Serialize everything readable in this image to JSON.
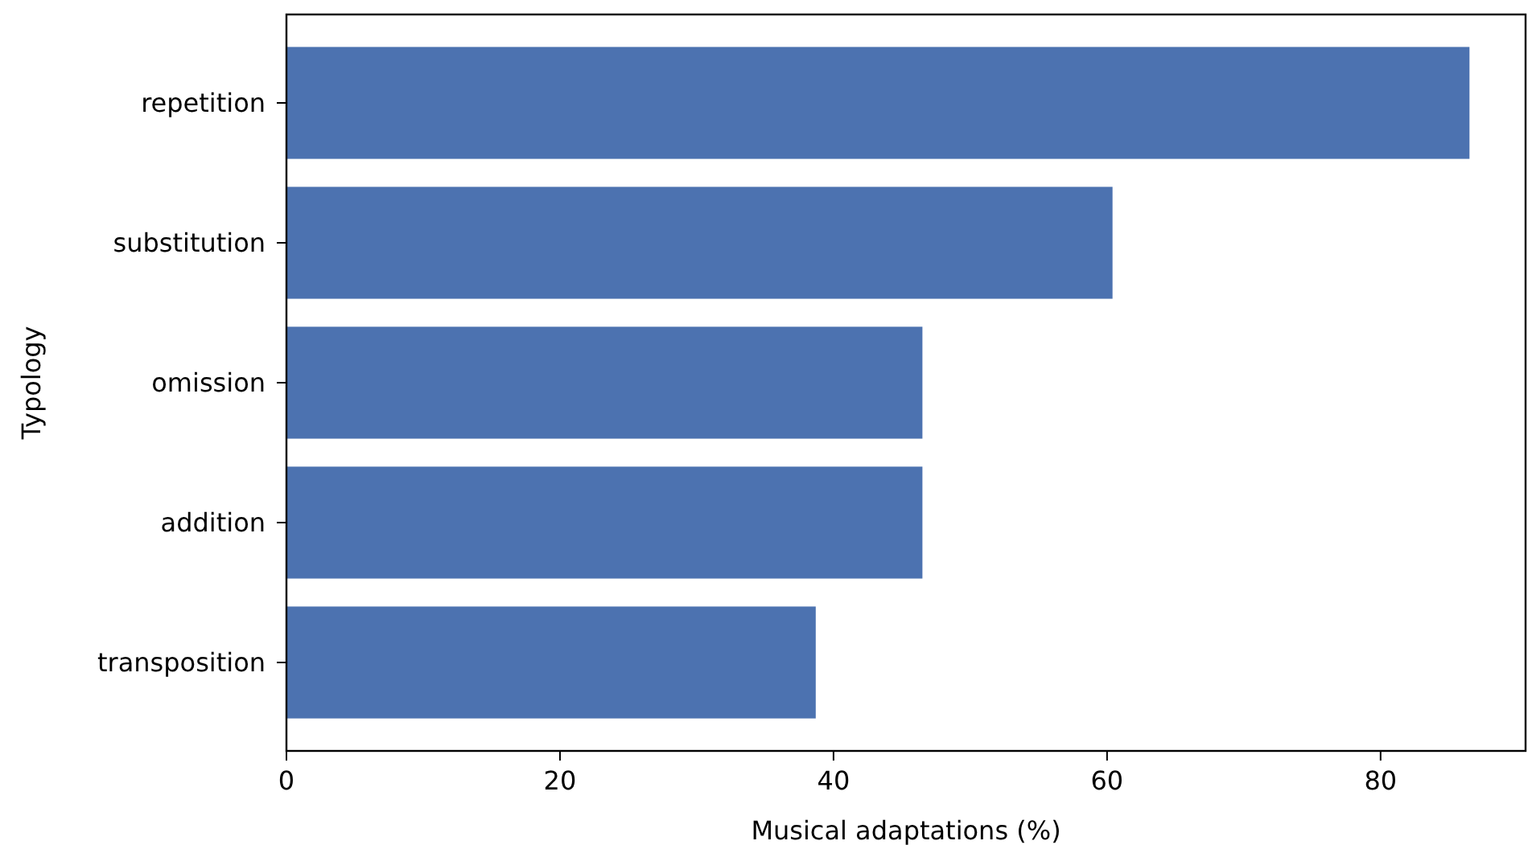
{
  "chart_data": {
    "type": "bar",
    "orientation": "horizontal",
    "xlabel": "Musical adaptations (%)",
    "ylabel": "Typology",
    "categories": [
      "repetition",
      "substitution",
      "omission",
      "addition",
      "transposition"
    ],
    "values": [
      86.5,
      60.4,
      46.5,
      46.5,
      38.7
    ],
    "color": "#4c72b0",
    "xlim": [
      0,
      90.6
    ],
    "xticks": [
      0,
      20,
      40,
      60,
      80
    ],
    "grid": false
  }
}
